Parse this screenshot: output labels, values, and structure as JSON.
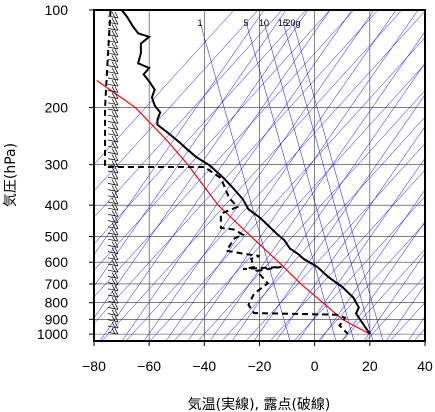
{
  "chart_data": {
    "type": "line",
    "title": "",
    "xlabel": "気温(実線), 露点(破線)",
    "ylabel": "気圧(hPa)",
    "xlim": [
      -80,
      40
    ],
    "ylim": [
      1050,
      100
    ],
    "y_scale": "log",
    "x_ticks": [
      "−80",
      "−60",
      "−40",
      "−20",
      "0",
      "20",
      "40"
    ],
    "y_ticks": [
      "100",
      "200",
      "300",
      "400",
      "500",
      "600",
      "700",
      "800",
      "900",
      "1000"
    ],
    "mixing_ratio_labels": [
      "1",
      "5",
      "10",
      "15",
      "20g"
    ],
    "colors": {
      "temperature": "#000000",
      "dewpoint": "#000000",
      "parcel": "#ff0000",
      "skew_lines": "#0000ff"
    },
    "series": [
      {
        "style": "solid",
        "points": [
          [
            -70,
            100
          ],
          [
            -68,
            105
          ],
          [
            -66,
            112
          ],
          [
            -64,
            118
          ],
          [
            -60,
            121
          ],
          [
            -63,
            127
          ],
          [
            -63,
            136
          ],
          [
            -64,
            146
          ],
          [
            -60,
            151
          ],
          [
            -62,
            158
          ],
          [
            -60,
            166
          ],
          [
            -58,
            176
          ],
          [
            -59,
            186
          ],
          [
            -58,
            197
          ],
          [
            -56,
            207
          ],
          [
            -57,
            218
          ],
          [
            -57,
            226
          ],
          [
            -53,
            240
          ],
          [
            -49,
            256
          ],
          [
            -46,
            270
          ],
          [
            -43,
            284
          ],
          [
            -38,
            302
          ],
          [
            -33,
            330
          ],
          [
            -30,
            351
          ],
          [
            -26,
            384
          ],
          [
            -24,
            412
          ],
          [
            -20,
            436
          ],
          [
            -17,
            461
          ],
          [
            -14,
            488
          ],
          [
            -11,
            513
          ],
          [
            -9,
            544
          ],
          [
            -6,
            566
          ],
          [
            -4,
            586
          ],
          [
            1,
            621
          ],
          [
            5,
            667
          ],
          [
            10,
            715
          ],
          [
            14,
            771
          ],
          [
            16,
            828
          ],
          [
            15,
            864
          ],
          [
            20,
            998
          ]
        ]
      },
      {
        "style": "dashed",
        "points": [
          [
            -74,
            100
          ],
          [
            -75,
            140
          ],
          [
            -76,
            200
          ],
          [
            -76,
            260
          ],
          [
            -76,
            305
          ],
          [
            -40,
            305
          ],
          [
            -34,
            330
          ],
          [
            -31,
            380
          ],
          [
            -28,
            405
          ],
          [
            -34,
            425
          ],
          [
            -34,
            470
          ],
          [
            -29,
            476
          ],
          [
            -26,
            494
          ],
          [
            -29,
            506
          ],
          [
            -32,
            553
          ],
          [
            -25,
            566
          ],
          [
            -20,
            574
          ],
          [
            -23,
            586
          ],
          [
            -22,
            621
          ],
          [
            -26,
            630
          ],
          [
            -12,
            620
          ],
          [
            -21,
            638
          ],
          [
            -17,
            697
          ],
          [
            -22,
            751
          ],
          [
            -24,
            812
          ],
          [
            -22,
            861
          ],
          [
            8,
            871
          ],
          [
            11,
            890
          ],
          [
            9,
            940
          ],
          [
            12,
            998
          ]
        ]
      }
    ],
    "parcel_curve": [
      [
        20,
        1000
      ],
      [
        10,
        900
      ],
      [
        3,
        800
      ],
      [
        -5,
        700
      ],
      [
        -13,
        600
      ],
      [
        -23,
        500
      ],
      [
        -35,
        400
      ],
      [
        -46,
        300
      ],
      [
        -54,
        250
      ],
      [
        -65,
        200
      ],
      [
        -79,
        165
      ]
    ]
  }
}
